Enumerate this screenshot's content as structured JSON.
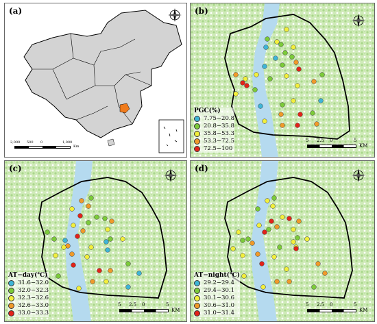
{
  "panels": {
    "a": {
      "label": "(a)",
      "scale_ticks": [
        "2,000",
        "500",
        "0",
        "1,000"
      ],
      "scale_unit": "Km"
    },
    "b": {
      "label": "(b)",
      "legend_title": "PGC(%)",
      "classes": [
        "7.75−20.8",
        "20.8−35.8",
        "35.8−53.3",
        "53.3−72.5",
        "72.5−100"
      ]
    },
    "c": {
      "label": "(c)",
      "legend_title": "AT−day(℃)",
      "classes": [
        "31.6−32.0",
        "32.0−32.3",
        "32.3−32.6",
        "32.6−33.0",
        "33.0−33.3"
      ]
    },
    "d": {
      "label": "(d)",
      "legend_title": "AT−night(℃)",
      "classes": [
        "29.2−29.4",
        "29.4−30.1",
        "30.1−30.6",
        "30.6−31.0",
        "31.0−31.4"
      ]
    }
  },
  "scale": {
    "ticks": [
      "5",
      "2.5",
      "0",
      "5"
    ],
    "unit": "KM"
  },
  "compass": {
    "n": "N",
    "s": "S",
    "e": "E",
    "w": "W"
  },
  "class_colors": [
    "#3fb5d6",
    "#7ccb3a",
    "#f2ef3c",
    "#f09a2a",
    "#e2231a"
  ],
  "colors": {
    "land": "#ffffff",
    "vegetation": "#bde3a2",
    "water": "#b5daef",
    "boundary": "#000000",
    "highlight": "#f07b1c",
    "country": "#d3d3d3"
  }
}
